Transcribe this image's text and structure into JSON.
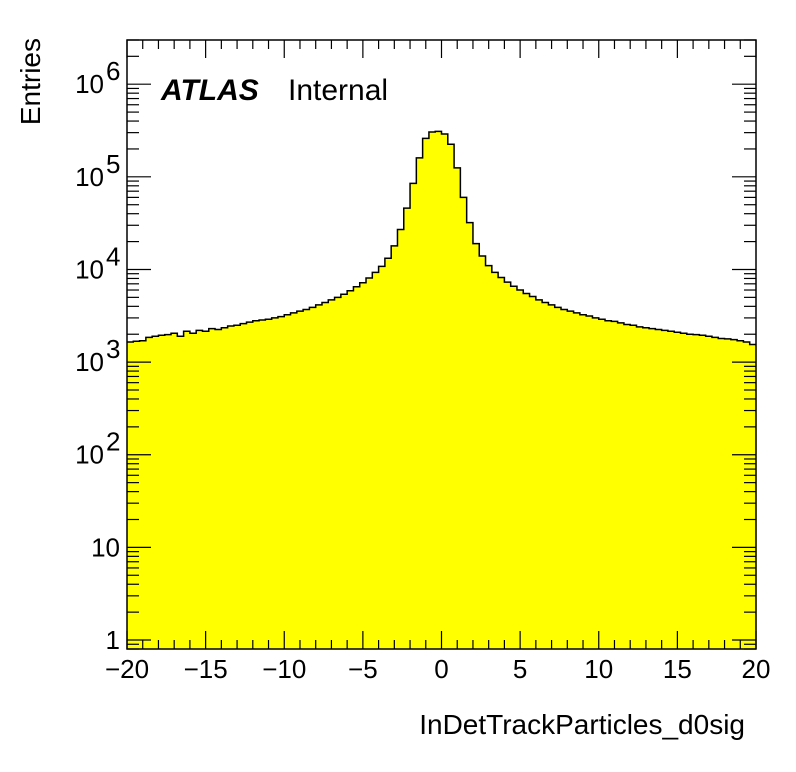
{
  "chart_data": {
    "type": "bar",
    "xlabel": "InDetTrackParticles_d0sig",
    "ylabel": "Entries",
    "xlim": [
      -20,
      20
    ],
    "ylim": [
      0.8,
      3000000
    ],
    "y_scale": "log",
    "grid": false,
    "fill_color": "#ffff00",
    "line_color": "#000000",
    "x_ticks": [
      -20,
      -15,
      -10,
      -5,
      0,
      5,
      10,
      15,
      20
    ],
    "x_tick_labels": [
      "−20",
      "−15",
      "−10",
      "−5",
      "0",
      "5",
      "10",
      "15",
      "20"
    ],
    "y_ticks": [
      {
        "value": 1,
        "base": "1",
        "exp": ""
      },
      {
        "value": 10,
        "base": "10",
        "exp": ""
      },
      {
        "value": 100,
        "base": "10",
        "exp": "2"
      },
      {
        "value": 1000,
        "base": "10",
        "exp": "3"
      },
      {
        "value": 10000,
        "base": "10",
        "exp": "4"
      },
      {
        "value": 100000,
        "base": "10",
        "exp": "5"
      },
      {
        "value": 1000000,
        "base": "10",
        "exp": "6"
      }
    ],
    "annotations": [
      {
        "text": "ATLAS",
        "style": "bold-italic"
      },
      {
        "text": "Internal",
        "style": "normal"
      }
    ],
    "bin_edges_start": -20,
    "bin_width": 0.4,
    "values": [
      1650,
      1680,
      1700,
      1850,
      1900,
      1950,
      1980,
      2050,
      1900,
      2150,
      2050,
      2200,
      2150,
      2300,
      2250,
      2350,
      2450,
      2500,
      2600,
      2700,
      2800,
      2850,
      2900,
      3000,
      3100,
      3250,
      3400,
      3550,
      3700,
      3900,
      4150,
      4400,
      4700,
      5000,
      5400,
      5900,
      6500,
      7200,
      8100,
      9300,
      10800,
      13200,
      18000,
      27000,
      46000,
      85000,
      160000,
      260000,
      305000,
      310000,
      290000,
      225000,
      125000,
      60000,
      32000,
      19000,
      14000,
      11000,
      9300,
      8200,
      7300,
      6600,
      6000,
      5500,
      5100,
      4700,
      4400,
      4150,
      3900,
      3700,
      3550,
      3400,
      3250,
      3150,
      3000,
      2900,
      2800,
      2750,
      2650,
      2550,
      2500,
      2400,
      2350,
      2300,
      2250,
      2200,
      2150,
      2100,
      2050,
      2000,
      1980,
      1950,
      1900,
      1850,
      1800,
      1780,
      1750,
      1700,
      1650,
      1550
    ]
  }
}
